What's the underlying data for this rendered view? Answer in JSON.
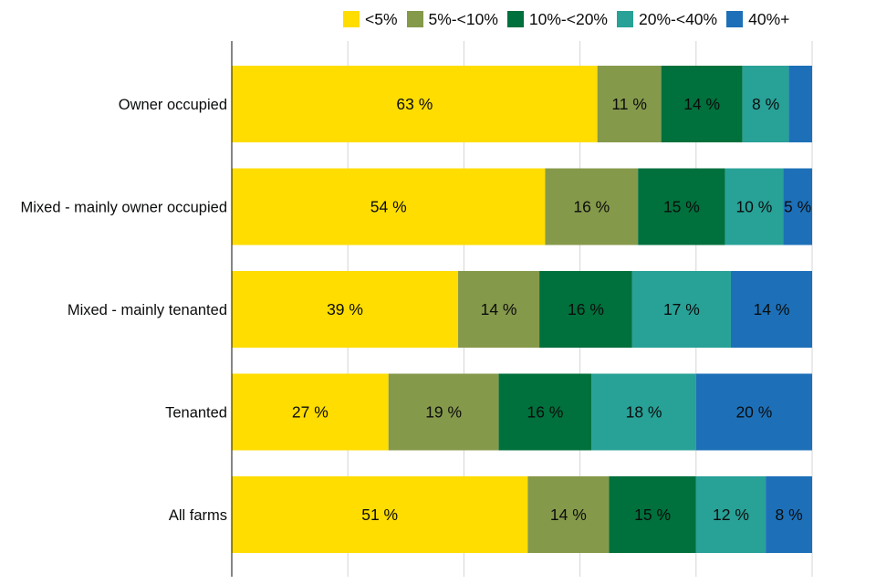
{
  "chart_data": {
    "type": "bar",
    "orientation": "horizontal",
    "stacked": true,
    "percent_stacked": true,
    "title": "",
    "xlabel": "",
    "ylabel": "",
    "xlim": [
      0,
      100
    ],
    "grid": true,
    "legend_position": "top",
    "categories": [
      "Owner occupied",
      "Mixed - mainly owner occupied",
      "Mixed - mainly tenanted",
      "Tenanted",
      "All farms"
    ],
    "series": [
      {
        "name": "<5%",
        "color": "#ffdd00",
        "values": [
          63,
          54,
          39,
          27,
          51
        ],
        "labels": [
          "63 %",
          "54 %",
          "39 %",
          "27 %",
          "51 %"
        ]
      },
      {
        "name": "5%-<10%",
        "color": "#85994b",
        "values": [
          11,
          16,
          14,
          19,
          14
        ],
        "labels": [
          "11 %",
          "16 %",
          "14 %",
          "19 %",
          "14 %"
        ]
      },
      {
        "name": "10%-<20%",
        "color": "#00703c",
        "values": [
          14,
          15,
          16,
          16,
          15
        ],
        "labels": [
          "14 %",
          "15 %",
          "16 %",
          "16 %",
          "15 %"
        ]
      },
      {
        "name": "20%-<40%",
        "color": "#28a197",
        "values": [
          8,
          10,
          17,
          18,
          12
        ],
        "labels": [
          "8 %",
          "10 %",
          "17 %",
          "18 %",
          "12 %"
        ]
      },
      {
        "name": "40%+",
        "color": "#1d70b8",
        "values": [
          4,
          5,
          14,
          20,
          8
        ],
        "labels": [
          "",
          "5 %",
          "14 %",
          "20 %",
          "8 %"
        ]
      }
    ]
  }
}
